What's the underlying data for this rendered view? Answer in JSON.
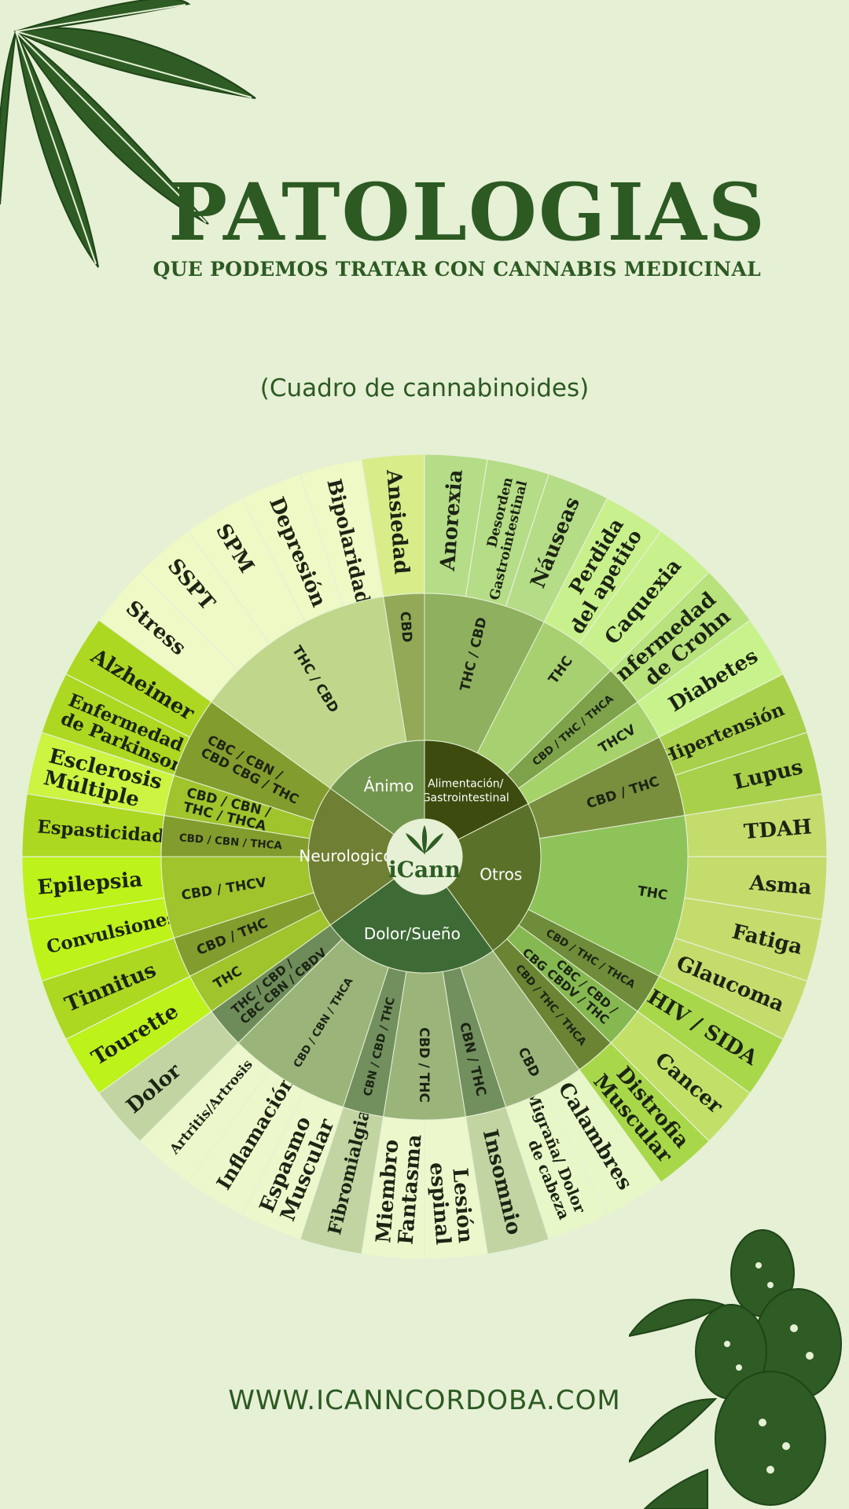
{
  "header": {
    "title": "PATOLOGIAS",
    "subtitle": "QUE PODEMOS TRATAR CON CANNABIS MEDICINAL",
    "caption": "(Cuadro de cannabinoides)"
  },
  "footer": {
    "website": "WWW.ICANNCORDOBA.COM"
  },
  "logo": {
    "text": "iCann"
  },
  "wheel": {
    "categories": [
      {
        "name": "Alimentación/ Gastrointestinal",
        "color": "#3d4c0e",
        "groups": [
          {
            "label": "THC / CBD",
            "color": "#8fb05e",
            "pathologies": [
              {
                "name": "Anorexia",
                "color": "#b5dc86"
              },
              {
                "name": "Desorden Gastrointestinal",
                "color": "#b5dc86"
              },
              {
                "name": "Náuseas",
                "color": "#b5dc86"
              }
            ]
          },
          {
            "label": "THC",
            "color": "#a7d070",
            "pathologies": [
              {
                "name": "Perdida del apetito",
                "color": "#c8f08c"
              },
              {
                "name": "Caquexia",
                "color": "#c8f08c"
              }
            ]
          },
          {
            "label": "CBD / THC / THCA",
            "color": "#7ea24a",
            "pathologies": [
              {
                "name": "Enfermedad de Crohn",
                "color": "#b8e27c"
              }
            ]
          },
          {
            "label": "THCV",
            "color": "#a5d36a",
            "pathologies": [
              {
                "name": "Diabetes",
                "color": "#c8f38c"
              }
            ]
          }
        ]
      },
      {
        "name": "Otros",
        "color": "#5a7129",
        "groups": [
          {
            "label": "CBD / THC",
            "color": "#7a8f3e",
            "pathologies": [
              {
                "name": "Hipertensión",
                "color": "#a8d04a"
              },
              {
                "name": "Lupus",
                "color": "#a8d04a"
              }
            ]
          },
          {
            "label": "THC",
            "color": "#8ec35a",
            "pathologies": [
              {
                "name": "TDAH",
                "color": "#c4dc6c"
              },
              {
                "name": "Asma",
                "color": "#c4dc6c"
              },
              {
                "name": "Fatiga",
                "color": "#c4dc6c"
              },
              {
                "name": "Glaucoma",
                "color": "#c4dc6c"
              }
            ]
          },
          {
            "label": "CBD / THC / THCA",
            "color": "#6f8c3a",
            "pathologies": [
              {
                "name": "HIV / SIDA",
                "color": "#a8d84a"
              }
            ]
          },
          {
            "label": "CBC / CBD / CBG CBDV / THC",
            "color": "#86b852",
            "pathologies": [
              {
                "name": "Cancer",
                "color": "#c2e068"
              }
            ]
          },
          {
            "label": "CBD / THC / THCA",
            "color": "#6a8434",
            "pathologies": [
              {
                "name": "Distrofia Muscular",
                "color": "#a8d84a"
              }
            ]
          }
        ]
      },
      {
        "name": "Dolor/Sueño",
        "color": "#3e6a36",
        "groups": [
          {
            "label": "CBD",
            "color": "#9bb47a",
            "pathologies": [
              {
                "name": "Calambres",
                "color": "#e8f7c8"
              },
              {
                "name": "Migraña/ Dolor de cabeza",
                "color": "#e8f7c8"
              }
            ]
          },
          {
            "label": "CBN / THC",
            "color": "#728f5e",
            "pathologies": [
              {
                "name": "Insomnio",
                "color": "#c2d4a2"
              }
            ]
          },
          {
            "label": "CBD / THC",
            "color": "#9bb47a",
            "pathologies": [
              {
                "name": "Lesión espinal",
                "color": "#ecf8cc"
              },
              {
                "name": "Miembro Fantasma",
                "color": "#ecf8cc"
              }
            ]
          },
          {
            "label": "CBN / CBD / THC",
            "color": "#728f5e",
            "pathologies": [
              {
                "name": "Fibromialgia",
                "color": "#c2d4a2"
              }
            ]
          },
          {
            "label": "CBD / CBN / THCA",
            "color": "#9bb47a",
            "pathologies": [
              {
                "name": "Espasmo Muscular",
                "color": "#ecf8cc"
              },
              {
                "name": "Inflamación",
                "color": "#ecf8cc"
              },
              {
                "name": "Artritis/Artrosis",
                "color": "#ecf8cc"
              }
            ]
          },
          {
            "label": "THC / CBD / CBC CBN / CBDV",
            "color": "#6e8c5a",
            "pathologies": [
              {
                "name": "Dolor",
                "color": "#c2d4a2"
              }
            ]
          }
        ]
      },
      {
        "name": "Neurologico",
        "color": "#6f7f33",
        "groups": [
          {
            "label": "THC",
            "color": "#9fc42c",
            "pathologies": [
              {
                "name": "Tourette",
                "color": "#bdf21a"
              }
            ]
          },
          {
            "label": "CBD / THC",
            "color": "#839c2e",
            "pathologies": [
              {
                "name": "Tinnitus",
                "color": "#acd822"
              }
            ]
          },
          {
            "label": "CBD / THCV",
            "color": "#9fc42c",
            "pathologies": [
              {
                "name": "Convulsiones",
                "color": "#bdf21a"
              },
              {
                "name": "Epilepsia",
                "color": "#bdf21a"
              }
            ]
          },
          {
            "label": "CBD / CBN / THCA",
            "color": "#839c2e",
            "pathologies": [
              {
                "name": "Espasticidad",
                "color": "#acd822"
              }
            ]
          },
          {
            "label": "CBD / CBN / THC / THCA",
            "color": "#9fc42c",
            "pathologies": [
              {
                "name": "Esclerosis Múltiple",
                "color": "#ccf440"
              }
            ]
          },
          {
            "label": "CBC / CBN / CBD CBG / THC",
            "color": "#839c2e",
            "pathologies": [
              {
                "name": "Enfermedad de Parkinson",
                "color": "#acd822"
              },
              {
                "name": "Alzheimer",
                "color": "#acd822"
              }
            ]
          }
        ]
      },
      {
        "name": "Ánimo",
        "color": "#73964e",
        "groups": [
          {
            "label": "THC / CBD",
            "color": "#c0d68a",
            "pathologies": [
              {
                "name": "Stress",
                "color": "#eef9c6"
              },
              {
                "name": "SSPT",
                "color": "#eef9c6"
              },
              {
                "name": "SPM",
                "color": "#eef9c6"
              },
              {
                "name": "Depresión",
                "color": "#eef9c6"
              },
              {
                "name": "Bipolaridad",
                "color": "#eef9c6"
              }
            ]
          },
          {
            "label": "CBD",
            "color": "#93a958",
            "pathologies": [
              {
                "name": "Ansiedad",
                "color": "#d8ec8a"
              }
            ]
          }
        ]
      }
    ]
  }
}
